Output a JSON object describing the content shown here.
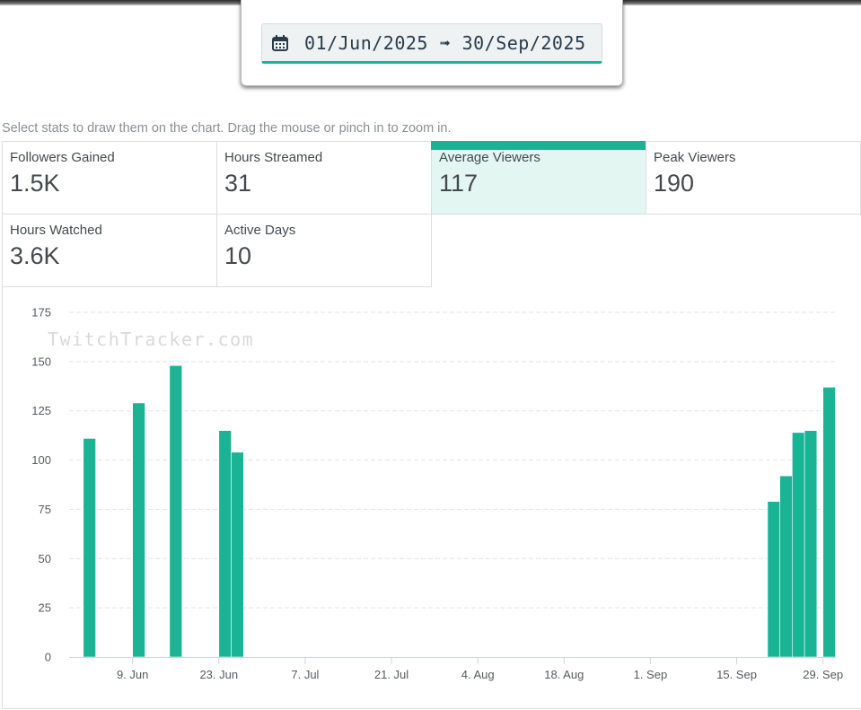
{
  "date_range": {
    "start": "01/Jun/2025",
    "arrow": "➟",
    "end": "30/Sep/2025",
    "display": "01/Jun/2025 ➟ 30/Sep/2025"
  },
  "hint": "Select stats to draw them on the chart. Drag the mouse or pinch in to zoom in.",
  "stats": [
    {
      "label": "Followers Gained",
      "value": "1.5K",
      "active": false
    },
    {
      "label": "Hours Streamed",
      "value": "31",
      "active": false
    },
    {
      "label": "Average Viewers",
      "value": "117",
      "active": true
    },
    {
      "label": "Peak Viewers",
      "value": "190",
      "active": false
    },
    {
      "label": "Hours Watched",
      "value": "3.6K",
      "active": false
    },
    {
      "label": "Active Days",
      "value": "10",
      "active": false
    }
  ],
  "colors": {
    "accent": "#1ab394",
    "bar": "#1ab394",
    "grid": "#e3e3e3"
  },
  "chart_data": {
    "type": "bar",
    "title": "",
    "series_name": "Average Viewers",
    "watermark": "TwitchTracker.com",
    "xlabel": "",
    "ylabel": "",
    "ylim": [
      0,
      175
    ],
    "y_ticks": [
      0,
      25,
      50,
      75,
      100,
      125,
      150,
      175
    ],
    "x_range_days": [
      0,
      122
    ],
    "x_ticks": [
      {
        "day": 8,
        "label": "9. Jun"
      },
      {
        "day": 22,
        "label": "23. Jun"
      },
      {
        "day": 36,
        "label": "7. Jul"
      },
      {
        "day": 50,
        "label": "21. Jul"
      },
      {
        "day": 64,
        "label": "4. Aug"
      },
      {
        "day": 78,
        "label": "18. Aug"
      },
      {
        "day": 92,
        "label": "1. Sep"
      },
      {
        "day": 106,
        "label": "15. Sep"
      },
      {
        "day": 120,
        "label": "29. Sep"
      }
    ],
    "points": [
      {
        "date": "2025-06-02",
        "day": 1,
        "value": 111
      },
      {
        "date": "2025-06-10",
        "day": 9,
        "value": 129
      },
      {
        "date": "2025-06-16",
        "day": 15,
        "value": 148
      },
      {
        "date": "2025-06-24",
        "day": 23,
        "value": 115
      },
      {
        "date": "2025-06-26",
        "day": 25,
        "value": 104
      },
      {
        "date": "2025-09-21",
        "day": 112,
        "value": 79
      },
      {
        "date": "2025-09-23",
        "day": 114,
        "value": 92
      },
      {
        "date": "2025-09-25",
        "day": 116,
        "value": 114
      },
      {
        "date": "2025-09-27",
        "day": 118,
        "value": 115
      },
      {
        "date": "2025-09-30",
        "day": 121,
        "value": 137
      }
    ]
  }
}
